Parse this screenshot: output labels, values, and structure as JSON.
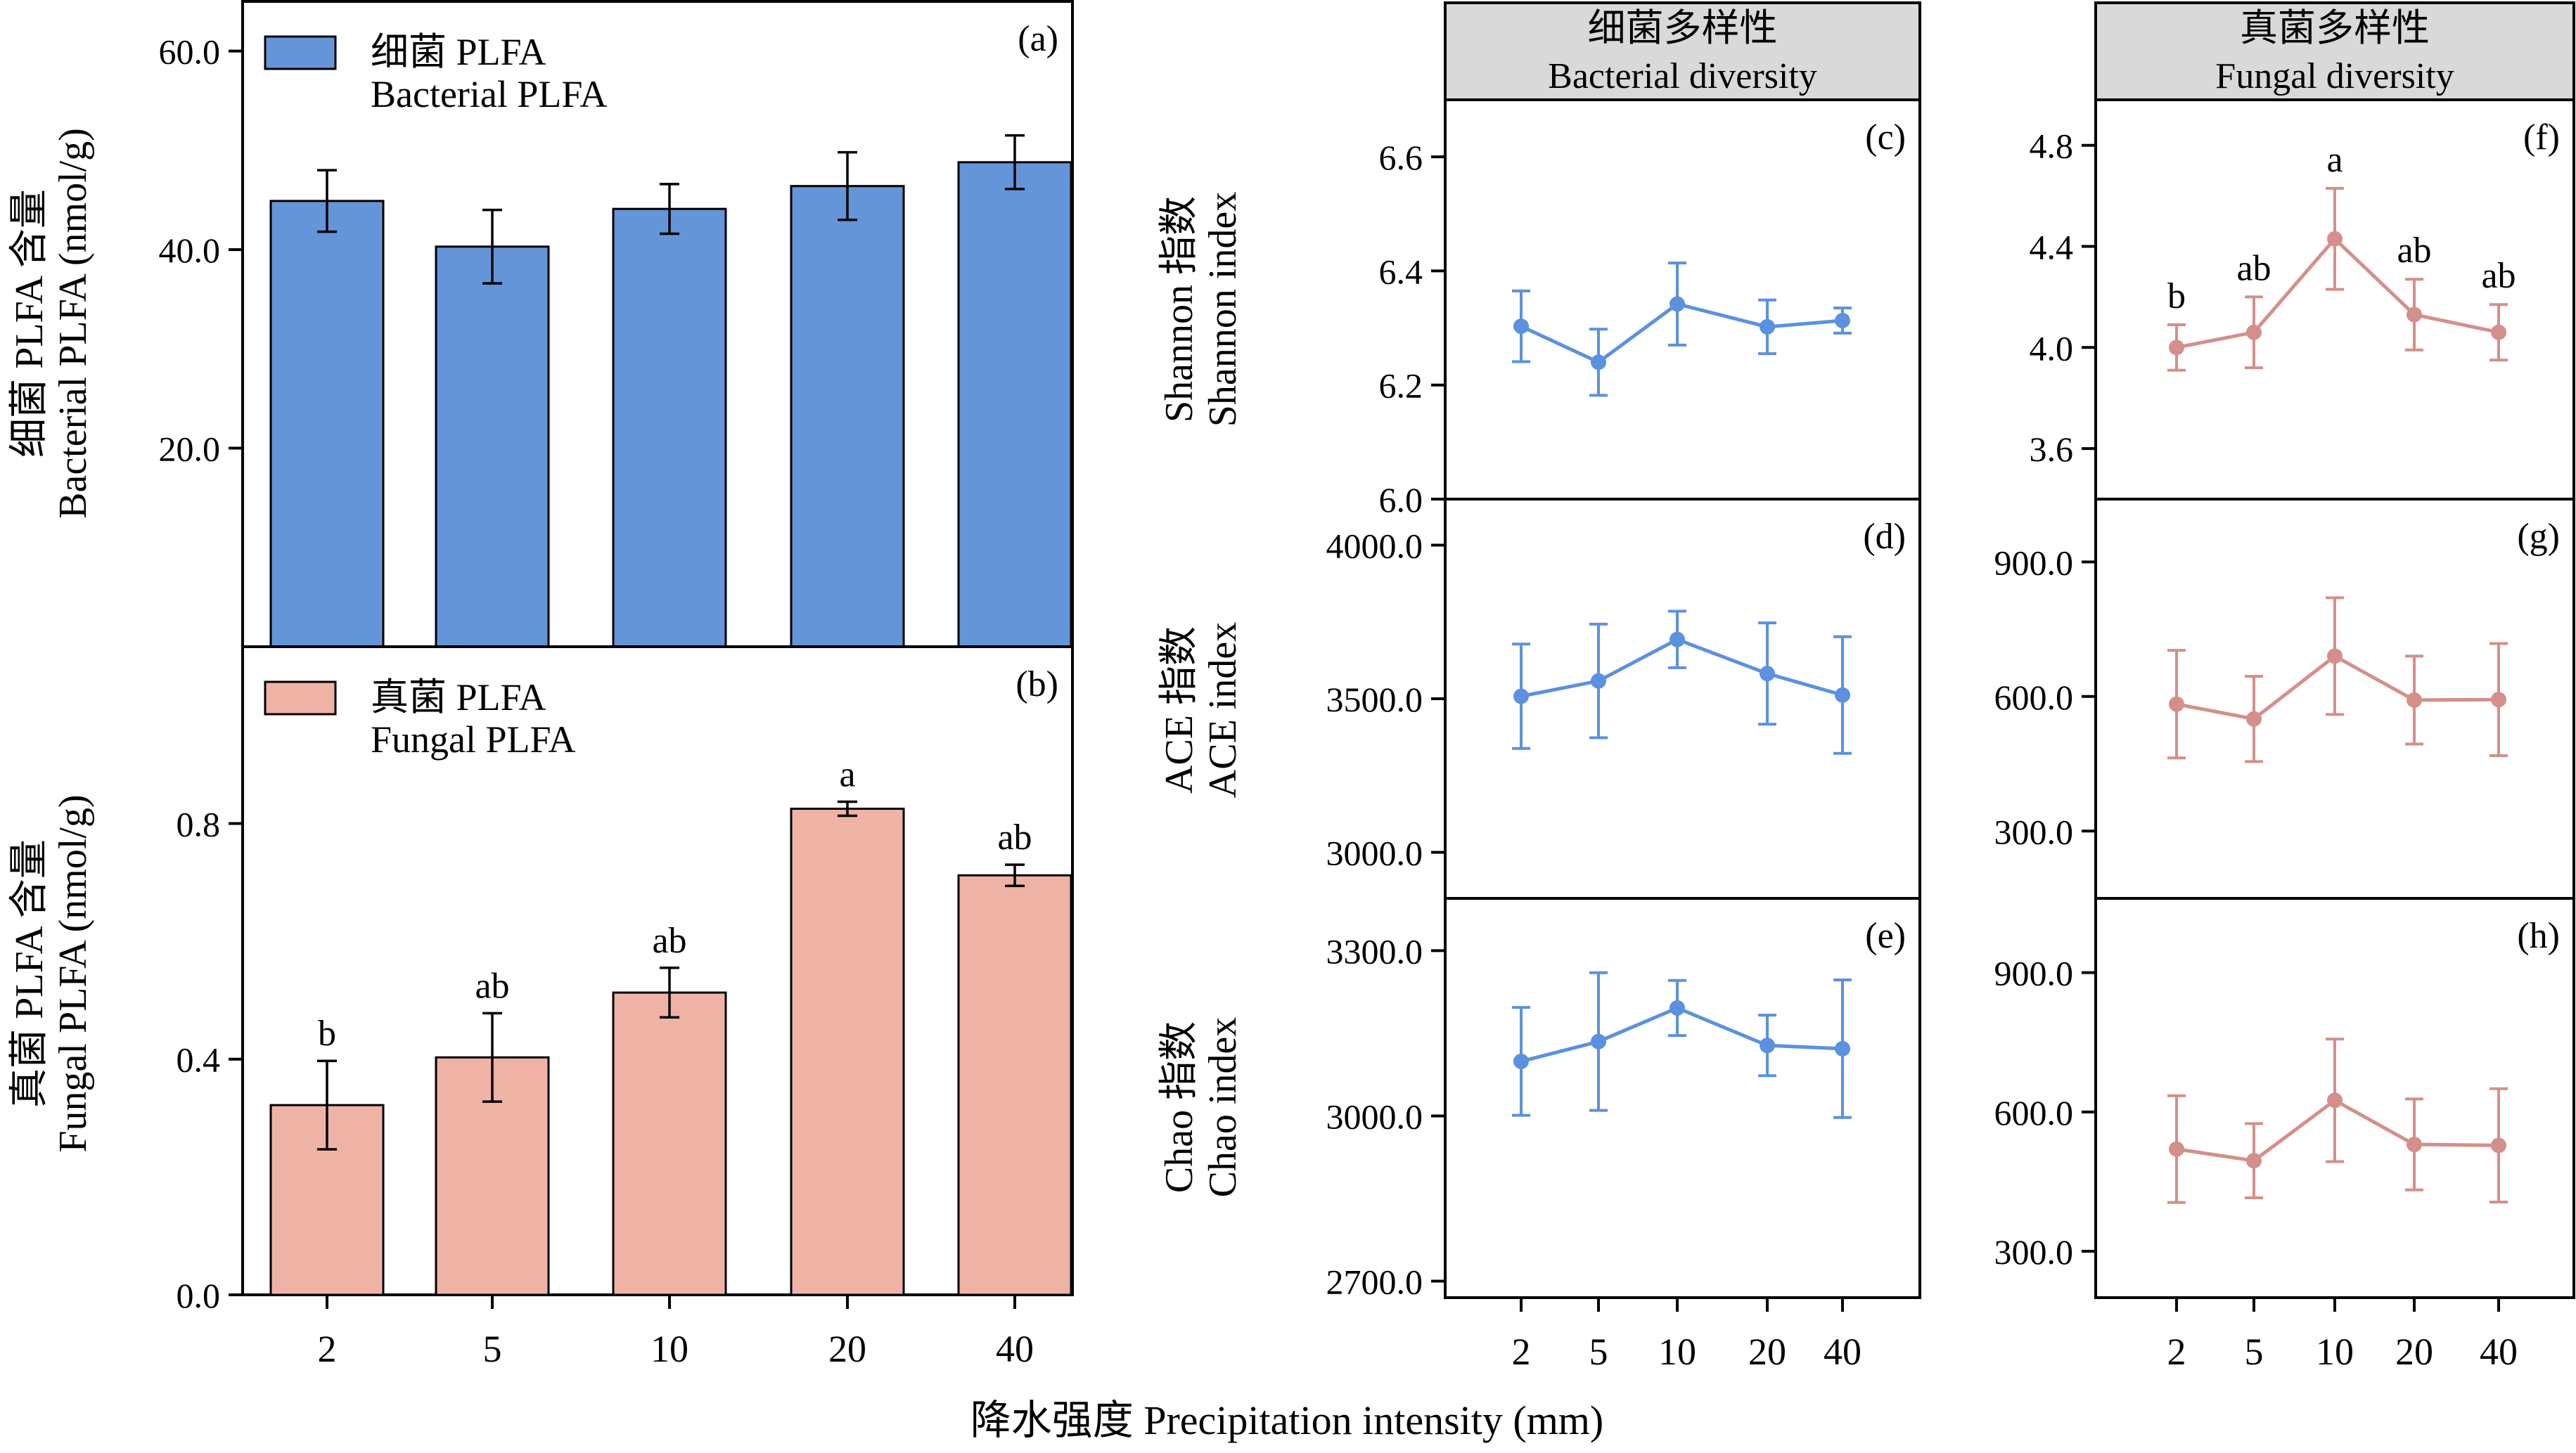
{
  "xlabel": "降水强度 Precipitation intensity (mm)",
  "colors": {
    "bacterial_bar": "#6595d9",
    "fungal_bar": "#efb3a6",
    "bacterial_line": "#5b91df",
    "fungal_line": "#d48f8a",
    "header_fill": "#d9d9d9",
    "axis": "#000000"
  },
  "headers": {
    "bacterial_cn": "细菌多样性",
    "bacterial_en": "Bacterial diversity",
    "fungal_cn": "真菌多样性",
    "fungal_en": "Fungal diversity"
  },
  "chart_data": [
    {
      "panel": "(a)",
      "type": "bar",
      "categories": [
        "2",
        "5",
        "10",
        "20",
        "40"
      ],
      "values": [
        44.9,
        40.3,
        44.1,
        46.4,
        48.8
      ],
      "errors": [
        3.1,
        3.7,
        2.5,
        3.4,
        2.7
      ],
      "ylim": [
        0,
        65
      ],
      "yticks": [
        20,
        40,
        60
      ],
      "yticklabels": [
        "20.0",
        "40.0",
        "60.0"
      ],
      "ylabel_cn": "细菌 PLFA 含量",
      "ylabel_en": "Bacterial PLFA (nmol/g)",
      "legend_cn": "细菌 PLFA",
      "legend_en": "Bacterial PLFA",
      "letters": []
    },
    {
      "panel": "(b)",
      "type": "bar",
      "categories": [
        "2",
        "5",
        "10",
        "20",
        "40"
      ],
      "values": [
        0.322,
        0.403,
        0.513,
        0.825,
        0.712
      ],
      "errors": [
        0.075,
        0.075,
        0.042,
        0.012,
        0.018
      ],
      "ylim": [
        0,
        1.1
      ],
      "yticks": [
        0,
        0.4,
        0.8
      ],
      "yticklabels": [
        "0.0",
        "0.4",
        "0.8"
      ],
      "ylabel_cn": "真菌 PLFA 含量",
      "ylabel_en": "Fungal PLFA (nmol/g)",
      "legend_cn": "真菌 PLFA",
      "legend_en": "Fungal PLFA",
      "letters": [
        "b",
        "ab",
        "ab",
        "a",
        "ab"
      ]
    },
    {
      "panel": "(c)",
      "type": "line",
      "categories": [
        "2",
        "5",
        "10",
        "20",
        "40"
      ],
      "values": [
        6.303,
        6.24,
        6.342,
        6.302,
        6.313
      ],
      "errors": [
        0.062,
        0.058,
        0.072,
        0.047,
        0.022
      ],
      "ylim": [
        6.0,
        6.7
      ],
      "yticks": [
        6.0,
        6.2,
        6.4,
        6.6
      ],
      "yticklabels": [
        "6.0",
        "6.2",
        "6.4",
        "6.6"
      ],
      "ylabel_cn": "Shannon 指数",
      "ylabel_en": "Shannon index",
      "letters": []
    },
    {
      "panel": "(d)",
      "type": "line",
      "categories": [
        "2",
        "5",
        "10",
        "20",
        "40"
      ],
      "values": [
        3508,
        3558,
        3693,
        3582,
        3512
      ],
      "errors": [
        170,
        185,
        92,
        165,
        190
      ],
      "ylim": [
        2850,
        4150
      ],
      "yticks": [
        3000,
        3500,
        4000
      ],
      "yticklabels": [
        "3000.0",
        "3500.0",
        "4000.0"
      ],
      "ylabel_cn": "ACE 指数",
      "ylabel_en": "ACE index",
      "letters": []
    },
    {
      "panel": "(e)",
      "type": "line",
      "categories": [
        "2",
        "5",
        "10",
        "20",
        "40"
      ],
      "values": [
        3099,
        3135,
        3196,
        3128,
        3122
      ],
      "errors": [
        98,
        125,
        50,
        55,
        125
      ],
      "ylim": [
        2670,
        3395
      ],
      "yticks": [
        2700,
        3000,
        3300
      ],
      "yticklabels": [
        "2700.0",
        "3000.0",
        "3300.0"
      ],
      "ylabel_cn": "Chao 指数",
      "ylabel_en": "Chao index",
      "letters": []
    },
    {
      "panel": "(f)",
      "type": "line",
      "categories": [
        "2",
        "5",
        "10",
        "20",
        "40"
      ],
      "values": [
        4.0,
        4.06,
        4.43,
        4.13,
        4.06
      ],
      "errors": [
        0.09,
        0.14,
        0.2,
        0.14,
        0.11
      ],
      "ylim": [
        3.4,
        4.98
      ],
      "yticks": [
        3.6,
        4.0,
        4.4,
        4.8
      ],
      "yticklabels": [
        "3.6",
        "4.0",
        "4.4",
        "4.8"
      ],
      "letters": [
        "b",
        "ab",
        "a",
        "ab",
        "ab"
      ]
    },
    {
      "panel": "(g)",
      "type": "line",
      "categories": [
        "2",
        "5",
        "10",
        "20",
        "40"
      ],
      "values": [
        583,
        550,
        690,
        592,
        593
      ],
      "errors": [
        120,
        95,
        130,
        98,
        125
      ],
      "ylim": [
        150,
        1040
      ],
      "yticks": [
        300,
        600,
        900
      ],
      "yticklabels": [
        "300.0",
        "600.0",
        "900.0"
      ],
      "letters": []
    },
    {
      "panel": "(h)",
      "type": "line",
      "categories": [
        "2",
        "5",
        "10",
        "20",
        "40"
      ],
      "values": [
        520,
        495,
        625,
        530,
        528
      ],
      "errors": [
        115,
        80,
        132,
        98,
        122
      ],
      "ylim": [
        200,
        1060
      ],
      "yticks": [
        300,
        600,
        900
      ],
      "yticklabels": [
        "300.0",
        "600.0",
        "900.0"
      ],
      "letters": []
    }
  ]
}
